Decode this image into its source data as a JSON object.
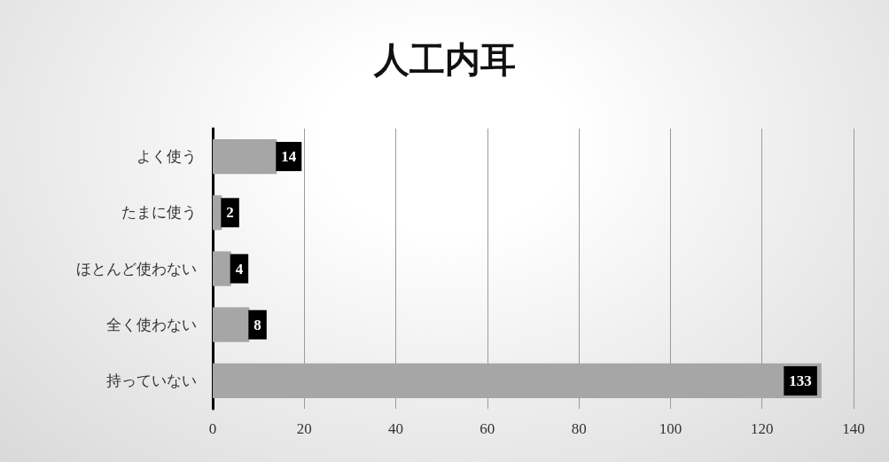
{
  "chart_data": {
    "type": "bar",
    "orientation": "horizontal",
    "title": "人工内耳",
    "categories": [
      "よく使う",
      "たまに使う",
      "ほとんど使わない",
      "全く使わない",
      "持っていない"
    ],
    "values": [
      14,
      2,
      4,
      8,
      133
    ],
    "color": "#a6a6a6",
    "xlim": [
      0,
      140
    ],
    "xticks": [
      0,
      20,
      40,
      60,
      80,
      100,
      120,
      140
    ],
    "grid": "x",
    "data_labels": true
  }
}
